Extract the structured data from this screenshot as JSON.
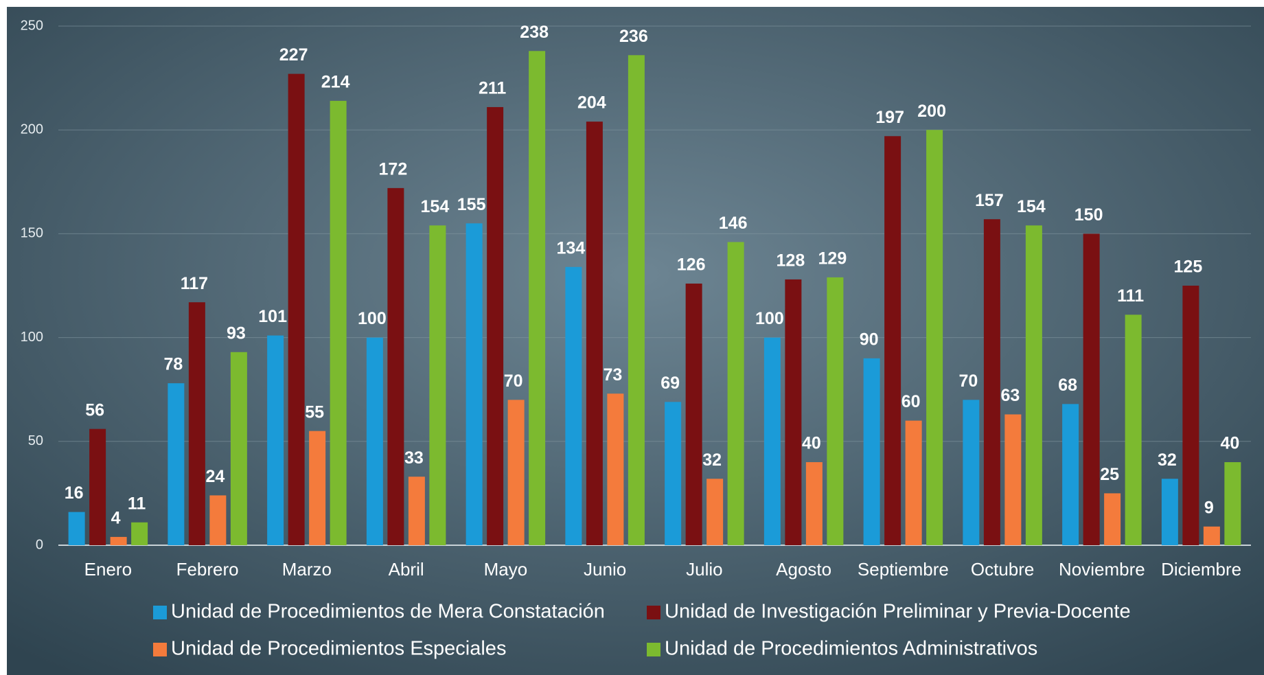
{
  "chart_data": {
    "type": "bar",
    "categories": [
      "Enero",
      "Febrero",
      "Marzo",
      "Abril",
      "Mayo",
      "Junio",
      "Julio",
      "Agosto",
      "Septiembre",
      "Octubre",
      "Noviembre",
      "Diciembre"
    ],
    "series": [
      {
        "name": "Unidad de Procedimientos de Mera Constatación",
        "color": "#1b9bd8",
        "values": [
          16,
          78,
          101,
          100,
          155,
          134,
          69,
          100,
          90,
          70,
          68,
          32
        ]
      },
      {
        "name": "Unidad de Investigación Preliminar y Previa-Docente",
        "color": "#7a1012",
        "values": [
          56,
          117,
          227,
          172,
          211,
          204,
          126,
          128,
          197,
          157,
          150,
          125
        ]
      },
      {
        "name": "Unidad de Procedimientos Especiales",
        "color": "#f47b3c",
        "values": [
          4,
          24,
          55,
          33,
          70,
          73,
          32,
          40,
          60,
          63,
          25,
          9
        ]
      },
      {
        "name": "Unidad de Procedimientos Administrativos",
        "color": "#7cba2f",
        "values": [
          11,
          93,
          214,
          154,
          238,
          236,
          146,
          129,
          200,
          154,
          111,
          40
        ]
      }
    ],
    "ylim": [
      0,
      250
    ],
    "yticks": [
      0,
      50,
      100,
      150,
      200,
      250
    ],
    "grid": true,
    "legend": "bottom"
  }
}
